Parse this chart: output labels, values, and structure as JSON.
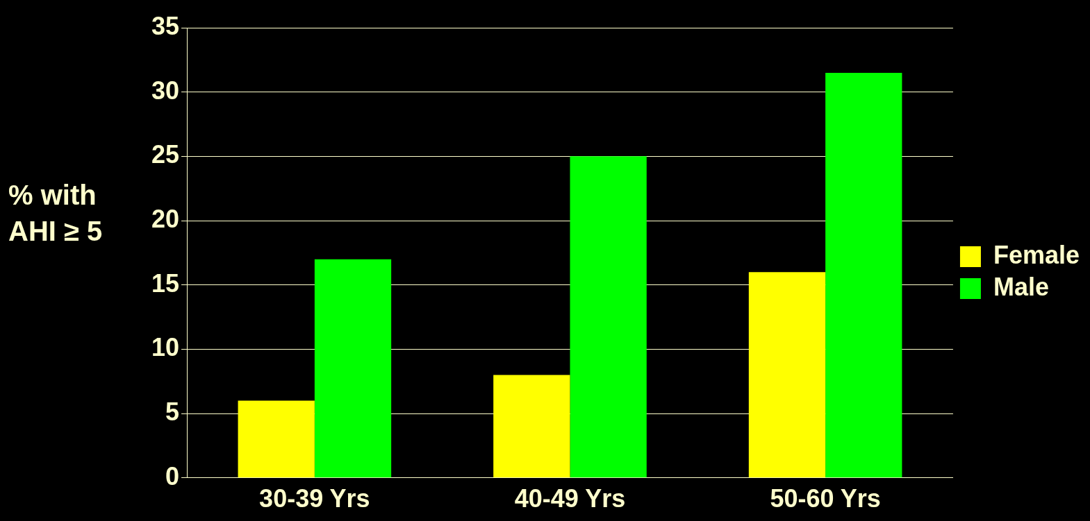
{
  "chart_data": {
    "type": "bar",
    "ylabel": "% with AHI ≥ 5",
    "categories": [
      "30-39 Yrs",
      "40-49 Yrs",
      "50-60 Yrs"
    ],
    "series": [
      {
        "name": "Female",
        "color": "#ffff00",
        "values": [
          6,
          8,
          16
        ]
      },
      {
        "name": "Male",
        "color": "#00ff00",
        "values": [
          17,
          25,
          31.5
        ]
      }
    ],
    "ylim": [
      0,
      35
    ],
    "yticks": [
      0,
      5,
      10,
      15,
      20,
      25,
      30,
      35
    ],
    "grid": "y",
    "legend": "right"
  }
}
